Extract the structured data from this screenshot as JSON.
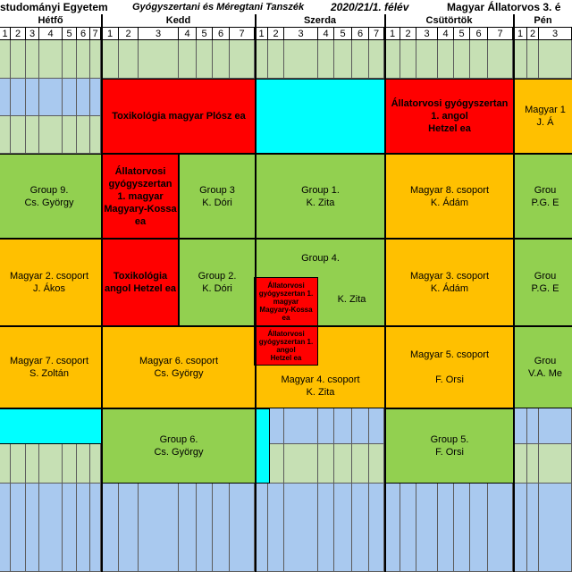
{
  "header": {
    "university": "studományi Egyetem",
    "department": "Gyógyszertani és Méregtani Tanszék",
    "semester": "2020/21/1. félév",
    "program": "Magyar Állatorvos 3. é"
  },
  "days": [
    "Hétfő",
    "Kedd",
    "Szerda",
    "Csütörtök",
    "Pén"
  ],
  "hours": [
    "1",
    "2",
    "3",
    "4",
    "5",
    "6",
    "7"
  ],
  "blocks": {
    "kedd_toxi_plosz": {
      "lines": [
        "Toxikológia magyar Plósz ea"
      ]
    },
    "csut_allatorvosi_angol": {
      "lines": [
        "Állatorvosi gyógyszertan",
        "1. angol",
        "Hetzel ea"
      ]
    },
    "pen_magyar1": {
      "lines": [
        "Magyar 1",
        "J. Á"
      ]
    },
    "hetfo_group9": {
      "lines": [
        "Group 9.",
        "Cs. György"
      ]
    },
    "kedd_allatorvosi_magyar": {
      "lines": [
        "Állatorvosi",
        "gyógyszertan",
        "1. magyar",
        "Magyary-Kossa",
        "ea"
      ]
    },
    "kedd_group3": {
      "lines": [
        "Group 3",
        "K. Dóri"
      ]
    },
    "szerda_group1": {
      "lines": [
        "Group 1.",
        "K. Zita"
      ]
    },
    "csut_magyar8": {
      "lines": [
        "Magyar 8. csoport",
        "K. Ádám"
      ]
    },
    "pen_group_a": {
      "lines": [
        "Grou",
        "P.G. E"
      ]
    },
    "hetfo_magyar2": {
      "lines": [
        "Magyar 2. csoport",
        "J. Ákos"
      ]
    },
    "kedd_toxi_angol": {
      "lines": [
        "Toxikológia",
        "angol Hetzel ea"
      ]
    },
    "kedd_group2": {
      "lines": [
        "Group 2.",
        "K. Dóri"
      ]
    },
    "szerda_group4_title": {
      "lines": [
        "Group 4."
      ]
    },
    "szerda_group4_name": {
      "lines": [
        "K. Zita"
      ]
    },
    "szerda_small_magyar": {
      "lines": [
        "Állatorvosi",
        "gyógyszertan 1.",
        "magyar",
        "Magyary-Kossa",
        "ea"
      ]
    },
    "szerda_small_angol": {
      "lines": [
        "Állatorvosi",
        "gyógyszertan 1.",
        "angol",
        "Hetzel ea"
      ]
    },
    "csut_magyar3": {
      "lines": [
        "Magyar 3. csoport",
        "K. Ádám"
      ]
    },
    "pen_group_b": {
      "lines": [
        "Grou",
        "P.G. E"
      ]
    },
    "hetfo_magyar7": {
      "lines": [
        "Magyar 7. csoport",
        "S. Zoltán"
      ]
    },
    "kedd_magyar6": {
      "lines": [
        "Magyar 6. csoport",
        "Cs. György"
      ]
    },
    "szerda_magyar4": {
      "lines": [
        "Magyar 4. csoport",
        "K. Zita"
      ]
    },
    "csut_magyar5_title": {
      "lines": [
        "Magyar 5. csoport"
      ]
    },
    "csut_magyar5_name": {
      "lines": [
        "F. Orsi"
      ]
    },
    "pen_group_c": {
      "lines": [
        "Grou",
        "V.A. Me"
      ]
    },
    "kedd_group6": {
      "lines": [
        "Group 6.",
        "Cs. György"
      ]
    },
    "csut_group5": {
      "lines": [
        "Group 5.",
        "F. Orsi"
      ]
    }
  },
  "colors": {
    "red": "#ff0000",
    "green": "#92d050",
    "orange": "#ffc000",
    "cyan": "#00ffff",
    "lightgreen": "#c6e0b4",
    "lightblue": "#a9c9ef"
  }
}
